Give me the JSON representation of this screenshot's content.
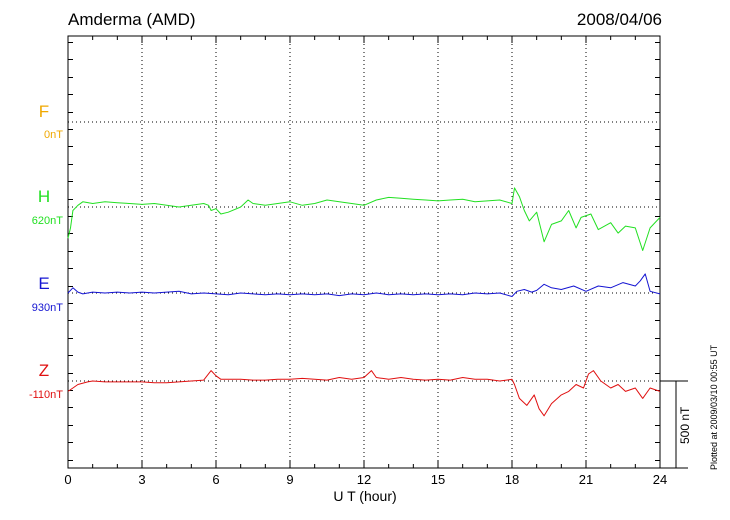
{
  "header": {
    "station": "Amderma (AMD)",
    "date": "2008/04/06"
  },
  "footer_note": "Plotted at 2009/03/10 00:55 UT",
  "scale_label": "500 nT",
  "chart_data": {
    "type": "line",
    "title": "Amderma (AMD)",
    "xlabel": "U T (hour)",
    "xlim": [
      0,
      24
    ],
    "xticks": [
      0,
      3,
      6,
      9,
      12,
      15,
      18,
      21,
      24
    ],
    "grid": true,
    "scale_bar_nT": 500,
    "colors": {
      "F": "#f0a800",
      "H": "#22e022",
      "E": "#1414d2",
      "Z": "#e01010"
    },
    "series": [
      {
        "name": "F",
        "baseline_label": "0nT",
        "x": [],
        "values": []
      },
      {
        "name": "H",
        "baseline_label": "620nT",
        "x": [
          0,
          0.1,
          0.2,
          0.4,
          0.6,
          1,
          1.5,
          2,
          2.5,
          3,
          3.5,
          4,
          4.5,
          5,
          5.5,
          5.7,
          5.8,
          6,
          6.2,
          6.5,
          7,
          7.3,
          7.5,
          8,
          8.5,
          9,
          9.5,
          10,
          10.5,
          11,
          11.5,
          12,
          12.5,
          13,
          13.5,
          14,
          14.5,
          15,
          15.5,
          16,
          16.5,
          17,
          17.5,
          18,
          18.1,
          18.3,
          18.5,
          18.7,
          19,
          19.3,
          19.6,
          20,
          20.3,
          20.6,
          20.8,
          21.2,
          21.5,
          22,
          22.3,
          22.6,
          23,
          23.3,
          23.6,
          24
        ],
        "values": [
          -180,
          -120,
          -20,
          10,
          30,
          20,
          30,
          25,
          20,
          15,
          20,
          10,
          0,
          10,
          20,
          10,
          -20,
          -10,
          -40,
          -30,
          0,
          40,
          20,
          10,
          20,
          30,
          10,
          20,
          40,
          30,
          20,
          10,
          40,
          55,
          50,
          45,
          40,
          35,
          40,
          45,
          30,
          35,
          40,
          20,
          110,
          60,
          -20,
          -80,
          -30,
          -200,
          -100,
          -80,
          -20,
          -120,
          -60,
          -40,
          -130,
          -90,
          -150,
          -110,
          -120,
          -250,
          -120,
          -60
        ]
      },
      {
        "name": "E",
        "baseline_label": "930nT",
        "x": [
          0,
          0.2,
          0.4,
          0.6,
          1,
          1.5,
          2,
          2.5,
          3,
          3.5,
          4,
          4.5,
          5,
          5.5,
          6,
          6.5,
          7,
          7.5,
          8,
          8.5,
          9,
          9.5,
          10,
          10.5,
          11,
          11.5,
          12,
          12.5,
          13,
          13.5,
          14,
          14.5,
          15,
          15.5,
          16,
          16.5,
          17,
          17.5,
          18,
          18.2,
          18.5,
          18.8,
          19,
          19.3,
          19.6,
          20,
          20.5,
          21,
          21.5,
          22,
          22.5,
          23,
          23.2,
          23.4,
          23.6,
          24
        ],
        "values": [
          0,
          30,
          5,
          -5,
          5,
          0,
          5,
          0,
          5,
          0,
          5,
          10,
          -5,
          0,
          -5,
          -10,
          0,
          -5,
          -10,
          -5,
          -10,
          -5,
          -10,
          -5,
          -15,
          -5,
          -10,
          0,
          -10,
          -5,
          -10,
          -5,
          -10,
          -5,
          -10,
          0,
          -5,
          0,
          -20,
          10,
          20,
          5,
          15,
          50,
          30,
          20,
          40,
          10,
          40,
          30,
          60,
          40,
          70,
          110,
          10,
          -5
        ]
      },
      {
        "name": "Z",
        "baseline_label": "-110nT",
        "x": [
          0,
          0.2,
          0.4,
          0.8,
          1,
          1.5,
          2,
          2.5,
          3,
          3.5,
          4,
          4.5,
          5,
          5.5,
          5.8,
          6,
          6.2,
          6.5,
          7,
          7.5,
          8,
          8.5,
          9,
          9.5,
          10,
          10.5,
          11,
          11.5,
          12,
          12.3,
          12.5,
          13,
          13.5,
          14,
          14.5,
          15,
          15.5,
          16,
          16.5,
          17,
          17.5,
          18,
          18.1,
          18.3,
          18.6,
          18.9,
          19.1,
          19.3,
          19.6,
          20,
          20.3,
          20.6,
          20.9,
          21.1,
          21.3,
          21.6,
          22,
          22.3,
          22.6,
          23,
          23.3,
          23.6,
          24
        ],
        "values": [
          -60,
          -40,
          -20,
          -5,
          0,
          -5,
          -5,
          -5,
          -5,
          -10,
          -10,
          -5,
          0,
          5,
          60,
          30,
          10,
          10,
          10,
          5,
          5,
          10,
          10,
          15,
          10,
          5,
          20,
          10,
          20,
          60,
          20,
          10,
          20,
          10,
          5,
          10,
          5,
          20,
          10,
          10,
          0,
          10,
          -20,
          -100,
          -140,
          -80,
          -160,
          -200,
          -130,
          -80,
          -60,
          -20,
          -40,
          40,
          60,
          0,
          -40,
          -20,
          -60,
          -40,
          -100,
          -40,
          -60
        ]
      }
    ]
  }
}
